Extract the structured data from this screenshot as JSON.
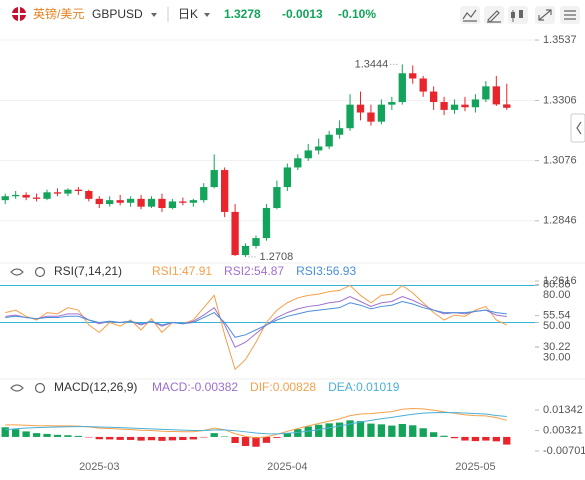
{
  "header": {
    "name": "英镑/美元",
    "symbol": "GBPUSD",
    "period": "日K",
    "price": 1.3278,
    "change": -0.0013,
    "change_pct": "-0.10%",
    "name_color": "#e5801d",
    "quote_color": "#13a35a"
  },
  "chart_data": [
    {
      "type": "candlestick",
      "open": [
        1.2925,
        1.294,
        1.2945,
        1.2935,
        1.293,
        1.2955,
        1.295,
        1.2965,
        1.296,
        1.293,
        1.291,
        1.2925,
        1.2915,
        1.293,
        1.29,
        1.293,
        1.2895,
        1.292,
        1.2915,
        1.2925,
        1.2975,
        1.304,
        1.288,
        1.2715,
        1.275,
        1.278,
        1.2895,
        1.2975,
        1.305,
        1.3085,
        1.3115,
        1.313,
        1.3175,
        1.32,
        1.329,
        1.326,
        1.3225,
        1.329,
        1.33,
        1.341,
        1.339,
        1.334,
        1.33,
        1.327,
        1.329,
        1.328,
        1.331,
        1.336,
        1.3291
      ],
      "high": [
        1.295,
        1.296,
        1.2955,
        1.295,
        1.2965,
        1.297,
        1.297,
        1.2975,
        1.2965,
        1.294,
        1.294,
        1.2945,
        1.294,
        1.2945,
        1.294,
        1.295,
        1.293,
        1.2935,
        1.293,
        1.299,
        1.31,
        1.305,
        1.291,
        1.276,
        1.279,
        1.291,
        1.3,
        1.3065,
        1.31,
        1.314,
        1.316,
        1.319,
        1.323,
        1.333,
        1.334,
        1.329,
        1.331,
        1.332,
        1.3444,
        1.344,
        1.34,
        1.336,
        1.332,
        1.331,
        1.332,
        1.333,
        1.338,
        1.34,
        1.337
      ],
      "low": [
        1.291,
        1.293,
        1.2925,
        1.292,
        1.2925,
        1.294,
        1.294,
        1.2945,
        1.292,
        1.2895,
        1.29,
        1.2905,
        1.29,
        1.289,
        1.2895,
        1.288,
        1.289,
        1.2905,
        1.29,
        1.2915,
        1.297,
        1.286,
        1.2712,
        1.2708,
        1.274,
        1.277,
        1.289,
        1.296,
        1.304,
        1.3075,
        1.31,
        1.312,
        1.316,
        1.319,
        1.323,
        1.321,
        1.3215,
        1.327,
        1.329,
        1.337,
        1.332,
        1.327,
        1.325,
        1.3255,
        1.3265,
        1.326,
        1.33,
        1.3285,
        1.327
      ],
      "close": [
        1.294,
        1.2945,
        1.2935,
        1.293,
        1.2955,
        1.295,
        1.2965,
        1.296,
        1.293,
        1.291,
        1.2925,
        1.2915,
        1.293,
        1.29,
        1.293,
        1.2895,
        1.292,
        1.2915,
        1.2925,
        1.2975,
        1.304,
        1.288,
        1.2715,
        1.275,
        1.278,
        1.2895,
        1.2975,
        1.305,
        1.3085,
        1.3115,
        1.313,
        1.3175,
        1.32,
        1.329,
        1.326,
        1.3225,
        1.329,
        1.33,
        1.341,
        1.339,
        1.334,
        1.33,
        1.327,
        1.329,
        1.328,
        1.331,
        1.336,
        1.3291,
        1.3278
      ],
      "ylim": [
        1.2593,
        1.3583
      ],
      "yticks": [
        1.3537,
        1.3306,
        1.3076,
        1.2846,
        1.2616
      ],
      "up_color": "#14a35a",
      "down_color": "#e8242c",
      "grid": true,
      "high_label": 1.3444,
      "low_label": 1.2708
    },
    {
      "type": "line",
      "title": "RSI(7,14,21)",
      "series": [
        {
          "name": "RSI1:47.91",
          "color": "#f5a04a",
          "values": [
            58,
            60,
            55,
            52,
            58,
            57,
            62,
            60,
            48,
            42,
            50,
            47,
            52,
            44,
            53,
            42,
            50,
            49,
            52,
            62,
            72,
            40,
            12,
            20,
            34,
            50,
            60,
            66,
            70,
            72,
            73,
            75,
            76,
            80,
            72,
            66,
            72,
            73,
            80,
            74,
            66,
            58,
            52,
            56,
            55,
            60,
            63,
            52,
            47.91
          ]
        },
        {
          "name": "RSI2:54.87",
          "color": "#a070d0",
          "values": [
            55,
            56,
            54,
            53,
            55,
            55,
            57,
            57,
            52,
            49,
            51,
            50,
            51,
            48,
            51,
            47,
            50,
            49,
            51,
            56,
            62,
            48,
            30,
            34,
            41,
            48,
            54,
            58,
            61,
            63,
            64,
            66,
            67,
            71,
            67,
            63,
            66,
            67,
            71,
            68,
            64,
            60,
            57,
            58,
            57,
            59,
            60,
            56,
            54.87
          ]
        },
        {
          "name": "RSI3:56.93",
          "color": "#4a8fd8",
          "values": [
            54,
            55,
            54,
            53,
            54,
            54,
            55,
            55,
            52,
            50,
            51,
            50,
            51,
            49,
            51,
            48,
            50,
            49,
            50,
            54,
            58,
            50,
            38,
            40,
            44,
            48,
            52,
            55,
            57,
            59,
            60,
            61,
            62,
            66,
            64,
            61,
            63,
            64,
            67,
            65,
            62,
            60,
            58,
            58,
            58,
            59,
            60,
            58,
            56.93
          ]
        }
      ],
      "ylim": [
        5,
        82
      ],
      "yticks": [
        {
          "value": 80,
          "label": "80.00"
        },
        80.86,
        55.54,
        {
          "value": 50,
          "label": "50.00"
        },
        {
          "value": 30,
          "label": "30.00"
        },
        30.22
      ],
      "hlines": [
        80,
        50
      ],
      "hline_color": "#33b5d6"
    },
    {
      "type": "combo",
      "title": "MACD(12,26,9)",
      "categories": [
        null,
        null,
        null,
        null,
        null,
        null,
        null,
        null,
        null,
        "2025-03",
        null,
        null,
        null,
        null,
        null,
        null,
        null,
        null,
        null,
        null,
        null,
        null,
        null,
        null,
        null,
        null,
        null,
        "2025-04",
        null,
        null,
        null,
        null,
        null,
        null,
        null,
        null,
        null,
        null,
        null,
        null,
        null,
        null,
        null,
        null,
        null,
        "2025-05",
        null,
        null,
        null
      ],
      "series": [
        {
          "name": "MACD:-0.00382",
          "kind": "bar",
          "color": "#9b6fd0",
          "up_color": "#14a35a",
          "down_color": "#e8242c",
          "values": [
            0.0048,
            0.00384,
            0.00276,
            0.00188,
            0.0015,
            0.00104,
            0.00084,
            0.00052,
            -0.00022,
            -0.00114,
            -0.00124,
            -0.00148,
            -0.0015,
            -0.00184,
            -0.00164,
            -0.00196,
            -0.00172,
            -0.00154,
            -0.00124,
            -4e-05,
            0.00188,
            0.00022,
            -0.00302,
            -0.0045,
            -0.00488,
            -0.00294,
            -0.00044,
            0.00204,
            0.00388,
            0.00518,
            0.00606,
            0.00676,
            0.00716,
            0.00828,
            0.0079,
            0.00664,
            0.00628,
            0.00566,
            0.00644,
            0.0058,
            0.00432,
            0.00234,
            0.0006,
            -0.00064,
            -0.0018,
            -0.00208,
            -0.00182,
            -0.0022,
            -0.00382
          ]
        },
        {
          "name": "DIF:0.00828",
          "kind": "line",
          "color": "#f5a04a",
          "values": [
            0.006,
            0.006,
            0.0058,
            0.0056,
            0.0056,
            0.0055,
            0.0055,
            0.0054,
            0.005,
            0.0044,
            0.0042,
            0.0039,
            0.0037,
            0.0033,
            0.0032,
            0.0028,
            0.0027,
            0.0026,
            0.0026,
            0.0032,
            0.0044,
            0.0036,
            0.0016,
            0.0003,
            -0.0005,
            0.0001,
            0.0013,
            0.0028,
            0.0042,
            0.0055,
            0.0067,
            0.0079,
            0.009,
            0.0106,
            0.0114,
            0.0116,
            0.0122,
            0.0126,
            0.0138,
            0.0142,
            0.014,
            0.0133,
            0.0125,
            0.0118,
            0.011,
            0.0106,
            0.0105,
            0.0096,
            0.00828
          ]
        },
        {
          "name": "DEA:0.01019",
          "kind": "line",
          "color": "#4ab0d8",
          "values": [
            0.0036,
            0.00408,
            0.00442,
            0.00466,
            0.00485,
            0.00498,
            0.00508,
            0.00514,
            0.00511,
            0.00497,
            0.00482,
            0.00464,
            0.00445,
            0.00422,
            0.00402,
            0.00378,
            0.00356,
            0.00337,
            0.00322,
            0.00322,
            0.00346,
            0.00349,
            0.00311,
            0.00255,
            0.00194,
            0.00157,
            0.00152,
            0.00178,
            0.00226,
            0.00291,
            0.00367,
            0.00452,
            0.00542,
            0.00646,
            0.00745,
            0.00828,
            0.00906,
            0.00977,
            0.01058,
            0.0113,
            0.01184,
            0.01213,
            0.0122,
            0.01212,
            0.0119,
            0.01164,
            0.01141,
            0.0107,
            0.01019
          ]
        }
      ],
      "ylim": [
        -0.0105,
        0.0199
      ],
      "yticks": [
        0.01342,
        0.00321,
        -0.00701
      ]
    }
  ]
}
